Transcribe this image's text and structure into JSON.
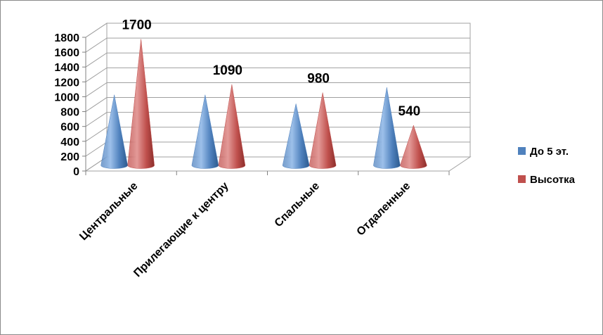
{
  "chart_data": {
    "type": "bar",
    "style": "3d-cone",
    "categories": [
      "Центральные",
      "Прилегающие к центру",
      "Спальные",
      "Отдаленные"
    ],
    "series": [
      {
        "name": "До 5 эт.",
        "color": "#4f81bd",
        "values": [
          950,
          950,
          830,
          1050
        ]
      },
      {
        "name": "Высотка",
        "color": "#c0504d",
        "values": [
          1700,
          1090,
          980,
          540
        ]
      }
    ],
    "data_labels": [
      {
        "series": 1,
        "category": 0,
        "text": "1700"
      },
      {
        "series": 1,
        "category": 1,
        "text": "1090"
      },
      {
        "series": 1,
        "category": 2,
        "text": "980"
      },
      {
        "series": 1,
        "category": 3,
        "text": "540"
      }
    ],
    "yticks": [
      "0",
      "200",
      "400",
      "600",
      "800",
      "1000",
      "1200",
      "1400",
      "1600",
      "1800"
    ],
    "ylim": [
      0,
      1800
    ],
    "grid": true,
    "legend_position": "right"
  }
}
